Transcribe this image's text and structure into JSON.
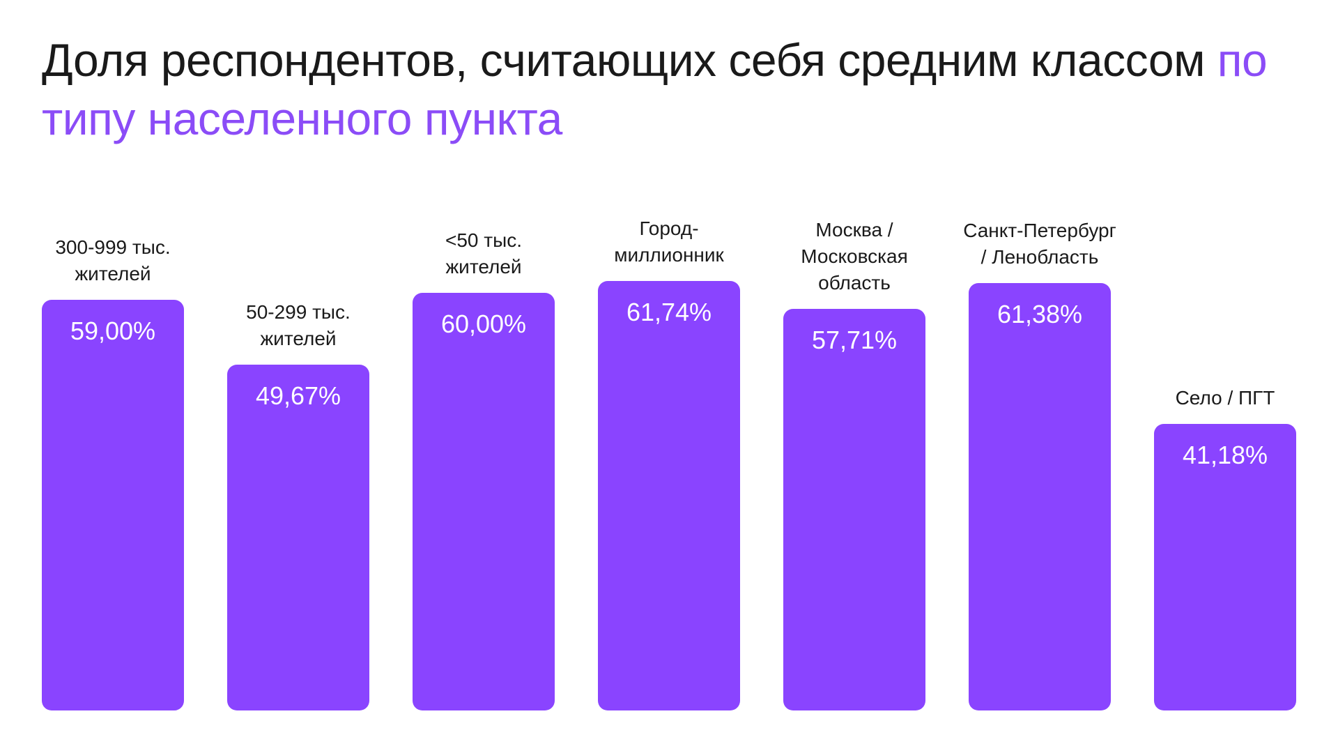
{
  "chart_data": {
    "type": "bar",
    "title": "Доля респондентов, считающих себя средним классом",
    "title_highlight": "по типу населенного пункта",
    "categories": [
      "300-999 тыс. жителей",
      "50-299 тыс. жителей",
      "<50 тыс. жителей",
      "Город-миллионник",
      "Москва / Московская область",
      "Санкт-Петербург / Ленобласть",
      "Село / ПГТ"
    ],
    "values": [
      59.0,
      49.67,
      60.0,
      61.74,
      57.71,
      61.38,
      41.18
    ],
    "value_labels": [
      "59,00%",
      "49,67%",
      "60,00%",
      "61,74%",
      "57,71%",
      "61,38%",
      "41,18%"
    ],
    "color": "#8a44ff"
  }
}
